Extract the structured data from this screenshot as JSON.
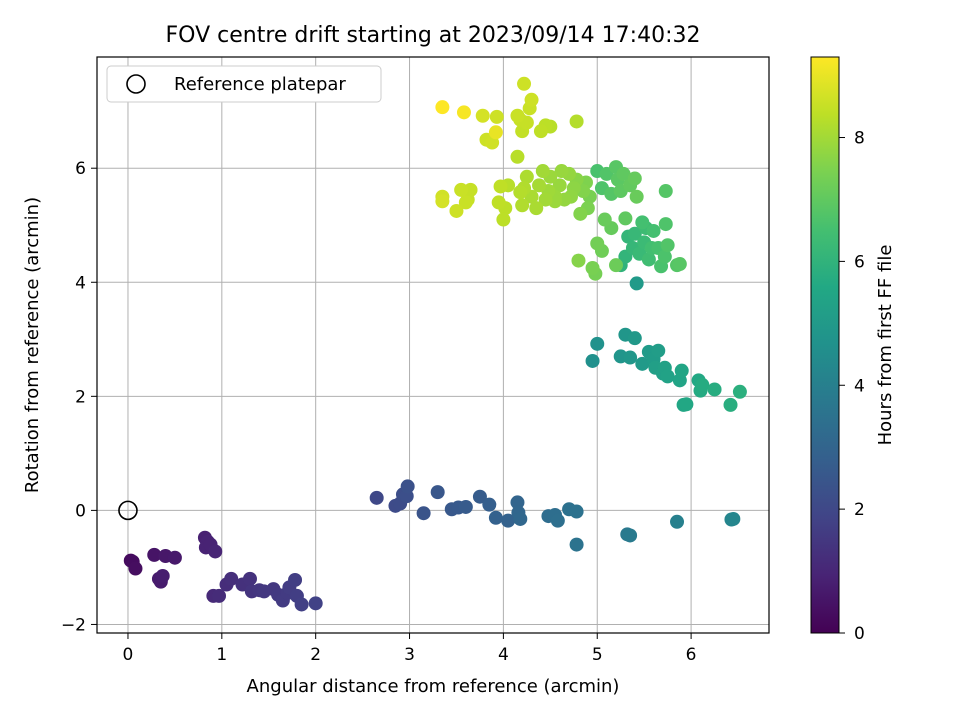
{
  "chart_data": {
    "type": "scatter",
    "title": "FOV centre drift starting at 2023/09/14 17:40:32",
    "xlabel": "Angular distance from reference (arcmin)",
    "ylabel": "Rotation from reference (arcmin)",
    "xlim": [
      -0.33,
      6.83
    ],
    "ylim": [
      -2.15,
      7.95
    ],
    "xticks": [
      "0",
      "1",
      "2",
      "3",
      "4",
      "5",
      "6"
    ],
    "yticks": [
      "−2",
      "0",
      "2",
      "4",
      "6"
    ],
    "grid": true,
    "legend": {
      "placement": "top-left",
      "entries": [
        "Reference platepar"
      ]
    },
    "reference_point": {
      "x": 0,
      "y": 0,
      "marker": "open circle"
    },
    "colorbar": {
      "label": "Hours from first FF file",
      "colormap": "viridis",
      "range": [
        0,
        9.3
      ],
      "ticks": [
        "0",
        "2",
        "4",
        "6",
        "8"
      ]
    },
    "points": [
      {
        "x": 0.05,
        "y": -0.9,
        "c": 0.3
      },
      {
        "x": 0.08,
        "y": -1.02,
        "c": 0.35
      },
      {
        "x": 0.03,
        "y": -0.88,
        "c": 0.25
      },
      {
        "x": 0.28,
        "y": -0.78,
        "c": 0.5
      },
      {
        "x": 0.4,
        "y": -0.8,
        "c": 0.6
      },
      {
        "x": 0.5,
        "y": -0.83,
        "c": 0.65
      },
      {
        "x": 0.33,
        "y": -1.2,
        "c": 0.7
      },
      {
        "x": 0.37,
        "y": -1.15,
        "c": 0.75
      },
      {
        "x": 0.35,
        "y": -1.25,
        "c": 0.7
      },
      {
        "x": 0.82,
        "y": -0.48,
        "c": 0.85
      },
      {
        "x": 0.85,
        "y": -0.55,
        "c": 0.9
      },
      {
        "x": 0.83,
        "y": -0.65,
        "c": 0.9
      },
      {
        "x": 0.93,
        "y": -0.72,
        "c": 0.95
      },
      {
        "x": 0.88,
        "y": -0.6,
        "c": 0.9
      },
      {
        "x": 0.91,
        "y": -1.5,
        "c": 1.1
      },
      {
        "x": 0.97,
        "y": -1.5,
        "c": 1.15
      },
      {
        "x": 1.05,
        "y": -1.3,
        "c": 1.2
      },
      {
        "x": 1.1,
        "y": -1.2,
        "c": 1.25
      },
      {
        "x": 1.22,
        "y": -1.3,
        "c": 1.3
      },
      {
        "x": 1.3,
        "y": -1.2,
        "c": 1.35
      },
      {
        "x": 1.32,
        "y": -1.42,
        "c": 1.4
      },
      {
        "x": 1.4,
        "y": -1.4,
        "c": 1.45
      },
      {
        "x": 1.45,
        "y": -1.42,
        "c": 1.5
      },
      {
        "x": 1.55,
        "y": -1.38,
        "c": 1.5
      },
      {
        "x": 1.6,
        "y": -1.48,
        "c": 1.55
      },
      {
        "x": 1.65,
        "y": -1.58,
        "c": 1.6
      },
      {
        "x": 1.7,
        "y": -1.45,
        "c": 1.6
      },
      {
        "x": 1.72,
        "y": -1.35,
        "c": 1.65
      },
      {
        "x": 1.78,
        "y": -1.22,
        "c": 1.7
      },
      {
        "x": 1.8,
        "y": -1.5,
        "c": 1.7
      },
      {
        "x": 1.85,
        "y": -1.65,
        "c": 1.75
      },
      {
        "x": 2.0,
        "y": -1.63,
        "c": 1.8
      },
      {
        "x": 2.65,
        "y": 0.22,
        "c": 2.0
      },
      {
        "x": 2.85,
        "y": 0.08,
        "c": 2.1
      },
      {
        "x": 2.9,
        "y": 0.12,
        "c": 2.15
      },
      {
        "x": 2.93,
        "y": 0.28,
        "c": 2.2
      },
      {
        "x": 2.97,
        "y": 0.25,
        "c": 2.25
      },
      {
        "x": 2.98,
        "y": 0.42,
        "c": 2.3
      },
      {
        "x": 3.15,
        "y": -0.05,
        "c": 2.4
      },
      {
        "x": 3.3,
        "y": 0.32,
        "c": 2.5
      },
      {
        "x": 3.45,
        "y": 0.02,
        "c": 2.55
      },
      {
        "x": 3.52,
        "y": 0.05,
        "c": 2.6
      },
      {
        "x": 3.6,
        "y": 0.06,
        "c": 2.65
      },
      {
        "x": 3.75,
        "y": 0.24,
        "c": 2.7
      },
      {
        "x": 3.85,
        "y": 0.1,
        "c": 2.8
      },
      {
        "x": 3.92,
        "y": -0.13,
        "c": 2.85
      },
      {
        "x": 4.05,
        "y": -0.18,
        "c": 2.9
      },
      {
        "x": 4.15,
        "y": 0.14,
        "c": 3.0
      },
      {
        "x": 4.16,
        "y": -0.04,
        "c": 3.05
      },
      {
        "x": 4.18,
        "y": -0.15,
        "c": 3.1
      },
      {
        "x": 4.48,
        "y": -0.1,
        "c": 3.3
      },
      {
        "x": 4.55,
        "y": -0.08,
        "c": 3.35
      },
      {
        "x": 4.58,
        "y": -0.18,
        "c": 3.4
      },
      {
        "x": 4.7,
        "y": 0.02,
        "c": 3.45
      },
      {
        "x": 4.78,
        "y": -0.02,
        "c": 3.5
      },
      {
        "x": 4.78,
        "y": -0.6,
        "c": 3.55
      },
      {
        "x": 5.32,
        "y": -0.42,
        "c": 3.75
      },
      {
        "x": 5.35,
        "y": -0.44,
        "c": 3.8
      },
      {
        "x": 5.85,
        "y": -0.2,
        "c": 4.0
      },
      {
        "x": 6.43,
        "y": -0.16,
        "c": 4.2
      },
      {
        "x": 6.45,
        "y": -0.15,
        "c": 4.25
      },
      {
        "x": 4.95,
        "y": 2.62,
        "c": 4.6
      },
      {
        "x": 5.0,
        "y": 2.92,
        "c": 4.7
      },
      {
        "x": 5.25,
        "y": 2.7,
        "c": 4.8
      },
      {
        "x": 5.3,
        "y": 3.08,
        "c": 4.85
      },
      {
        "x": 5.35,
        "y": 2.68,
        "c": 4.9
      },
      {
        "x": 5.4,
        "y": 3.02,
        "c": 4.95
      },
      {
        "x": 5.48,
        "y": 2.57,
        "c": 5.0
      },
      {
        "x": 5.55,
        "y": 2.78,
        "c": 5.05
      },
      {
        "x": 5.6,
        "y": 2.65,
        "c": 5.1
      },
      {
        "x": 5.65,
        "y": 2.8,
        "c": 5.15
      },
      {
        "x": 5.62,
        "y": 2.5,
        "c": 5.2
      },
      {
        "x": 5.7,
        "y": 2.4,
        "c": 5.25
      },
      {
        "x": 5.72,
        "y": 2.5,
        "c": 5.3
      },
      {
        "x": 5.75,
        "y": 2.35,
        "c": 5.35
      },
      {
        "x": 5.88,
        "y": 2.28,
        "c": 5.4
      },
      {
        "x": 5.9,
        "y": 2.45,
        "c": 5.45
      },
      {
        "x": 5.92,
        "y": 1.85,
        "c": 5.5
      },
      {
        "x": 5.95,
        "y": 1.86,
        "c": 5.55
      },
      {
        "x": 6.08,
        "y": 2.28,
        "c": 5.6
      },
      {
        "x": 6.1,
        "y": 2.1,
        "c": 5.65
      },
      {
        "x": 6.12,
        "y": 2.2,
        "c": 5.7
      },
      {
        "x": 6.25,
        "y": 2.12,
        "c": 5.75
      },
      {
        "x": 6.42,
        "y": 1.85,
        "c": 5.8
      },
      {
        "x": 6.52,
        "y": 2.08,
        "c": 5.85
      },
      {
        "x": 5.42,
        "y": 3.98,
        "c": 5.0
      },
      {
        "x": 5.25,
        "y": 4.3,
        "c": 6.0
      },
      {
        "x": 5.3,
        "y": 4.45,
        "c": 6.05
      },
      {
        "x": 5.33,
        "y": 4.8,
        "c": 6.1
      },
      {
        "x": 5.38,
        "y": 4.6,
        "c": 6.15
      },
      {
        "x": 5.4,
        "y": 4.85,
        "c": 6.2
      },
      {
        "x": 5.45,
        "y": 4.5,
        "c": 6.25
      },
      {
        "x": 5.5,
        "y": 4.7,
        "c": 6.3
      },
      {
        "x": 5.52,
        "y": 4.95,
        "c": 6.35
      },
      {
        "x": 5.55,
        "y": 4.4,
        "c": 6.4
      },
      {
        "x": 5.58,
        "y": 4.6,
        "c": 6.45
      },
      {
        "x": 5.6,
        "y": 4.9,
        "c": 6.5
      },
      {
        "x": 5.65,
        "y": 4.6,
        "c": 6.55
      },
      {
        "x": 5.68,
        "y": 4.28,
        "c": 6.6
      },
      {
        "x": 5.72,
        "y": 4.45,
        "c": 6.65
      },
      {
        "x": 5.73,
        "y": 5.02,
        "c": 6.7
      },
      {
        "x": 5.75,
        "y": 4.65,
        "c": 6.75
      },
      {
        "x": 5.85,
        "y": 4.3,
        "c": 6.8
      },
      {
        "x": 5.88,
        "y": 4.32,
        "c": 6.85
      },
      {
        "x": 5.73,
        "y": 5.6,
        "c": 6.8
      },
      {
        "x": 5.48,
        "y": 5.05,
        "c": 6.5
      },
      {
        "x": 5.0,
        "y": 5.95,
        "c": 6.6
      },
      {
        "x": 5.05,
        "y": 5.65,
        "c": 6.7
      },
      {
        "x": 5.1,
        "y": 5.9,
        "c": 6.75
      },
      {
        "x": 5.15,
        "y": 5.55,
        "c": 6.8
      },
      {
        "x": 5.2,
        "y": 6.02,
        "c": 6.85
      },
      {
        "x": 5.22,
        "y": 5.8,
        "c": 6.9
      },
      {
        "x": 5.25,
        "y": 5.6,
        "c": 6.95
      },
      {
        "x": 5.28,
        "y": 5.9,
        "c": 7.0
      },
      {
        "x": 5.35,
        "y": 5.7,
        "c": 7.05
      },
      {
        "x": 5.4,
        "y": 5.82,
        "c": 7.1
      },
      {
        "x": 5.42,
        "y": 5.5,
        "c": 7.15
      },
      {
        "x": 5.3,
        "y": 5.12,
        "c": 7.0
      },
      {
        "x": 5.15,
        "y": 4.95,
        "c": 7.1
      },
      {
        "x": 5.08,
        "y": 5.1,
        "c": 7.15
      },
      {
        "x": 5.2,
        "y": 4.3,
        "c": 7.2
      },
      {
        "x": 5.05,
        "y": 4.55,
        "c": 7.25
      },
      {
        "x": 5.0,
        "y": 4.68,
        "c": 7.3
      },
      {
        "x": 4.98,
        "y": 4.15,
        "c": 7.35
      },
      {
        "x": 4.95,
        "y": 4.25,
        "c": 7.4
      },
      {
        "x": 4.92,
        "y": 5.5,
        "c": 7.4
      },
      {
        "x": 4.9,
        "y": 5.3,
        "c": 7.45
      },
      {
        "x": 4.88,
        "y": 5.75,
        "c": 7.5
      },
      {
        "x": 4.85,
        "y": 5.6,
        "c": 7.55
      },
      {
        "x": 4.82,
        "y": 5.2,
        "c": 7.55
      },
      {
        "x": 4.8,
        "y": 4.38,
        "c": 7.6
      },
      {
        "x": 4.78,
        "y": 5.8,
        "c": 7.65
      },
      {
        "x": 4.75,
        "y": 5.65,
        "c": 7.7
      },
      {
        "x": 4.72,
        "y": 5.5,
        "c": 7.75
      },
      {
        "x": 4.7,
        "y": 5.9,
        "c": 7.8
      },
      {
        "x": 4.65,
        "y": 5.45,
        "c": 7.8
      },
      {
        "x": 4.6,
        "y": 5.7,
        "c": 7.85
      },
      {
        "x": 4.55,
        "y": 5.5,
        "c": 7.9
      },
      {
        "x": 4.5,
        "y": 5.85,
        "c": 7.9
      },
      {
        "x": 4.48,
        "y": 5.6,
        "c": 7.95
      },
      {
        "x": 4.45,
        "y": 5.45,
        "c": 8.0
      },
      {
        "x": 4.42,
        "y": 5.95,
        "c": 8.0
      },
      {
        "x": 4.38,
        "y": 5.7,
        "c": 8.05
      },
      {
        "x": 4.35,
        "y": 5.3,
        "c": 8.1
      },
      {
        "x": 4.3,
        "y": 5.5,
        "c": 8.1
      },
      {
        "x": 4.25,
        "y": 5.85,
        "c": 8.15
      },
      {
        "x": 4.22,
        "y": 5.65,
        "c": 8.2
      },
      {
        "x": 4.2,
        "y": 5.35,
        "c": 8.2
      },
      {
        "x": 4.18,
        "y": 5.58,
        "c": 8.25
      },
      {
        "x": 4.15,
        "y": 6.2,
        "c": 8.3
      },
      {
        "x": 4.05,
        "y": 5.7,
        "c": 8.3
      },
      {
        "x": 4.02,
        "y": 5.3,
        "c": 8.35
      },
      {
        "x": 4.0,
        "y": 5.1,
        "c": 8.35
      },
      {
        "x": 3.97,
        "y": 5.68,
        "c": 8.4
      },
      {
        "x": 3.95,
        "y": 5.4,
        "c": 8.4
      },
      {
        "x": 4.55,
        "y": 5.42,
        "c": 7.9
      },
      {
        "x": 4.62,
        "y": 5.95,
        "c": 7.85
      },
      {
        "x": 3.65,
        "y": 5.62,
        "c": 8.5
      },
      {
        "x": 3.62,
        "y": 5.45,
        "c": 8.5
      },
      {
        "x": 3.6,
        "y": 5.4,
        "c": 8.55
      },
      {
        "x": 3.55,
        "y": 5.62,
        "c": 8.55
      },
      {
        "x": 3.5,
        "y": 5.25,
        "c": 8.6
      },
      {
        "x": 3.35,
        "y": 5.5,
        "c": 8.65
      },
      {
        "x": 3.35,
        "y": 5.42,
        "c": 8.7
      },
      {
        "x": 3.82,
        "y": 6.5,
        "c": 8.6
      },
      {
        "x": 3.88,
        "y": 6.45,
        "c": 8.65
      },
      {
        "x": 3.78,
        "y": 6.92,
        "c": 8.7
      },
      {
        "x": 3.93,
        "y": 6.9,
        "c": 8.6
      },
      {
        "x": 4.15,
        "y": 6.92,
        "c": 8.55
      },
      {
        "x": 4.18,
        "y": 6.85,
        "c": 8.5
      },
      {
        "x": 4.2,
        "y": 6.65,
        "c": 8.45
      },
      {
        "x": 4.22,
        "y": 6.8,
        "c": 8.45
      },
      {
        "x": 4.25,
        "y": 6.8,
        "c": 8.5
      },
      {
        "x": 4.28,
        "y": 7.05,
        "c": 8.55
      },
      {
        "x": 4.3,
        "y": 7.2,
        "c": 8.6
      },
      {
        "x": 4.22,
        "y": 7.48,
        "c": 8.6
      },
      {
        "x": 4.4,
        "y": 6.65,
        "c": 8.4
      },
      {
        "x": 4.45,
        "y": 6.75,
        "c": 8.35
      },
      {
        "x": 4.5,
        "y": 6.73,
        "c": 8.3
      },
      {
        "x": 4.78,
        "y": 6.82,
        "c": 8.25
      },
      {
        "x": 3.92,
        "y": 6.63,
        "c": 9.0
      },
      {
        "x": 3.58,
        "y": 6.98,
        "c": 9.2
      },
      {
        "x": 3.35,
        "y": 7.07,
        "c": 9.3
      }
    ]
  }
}
